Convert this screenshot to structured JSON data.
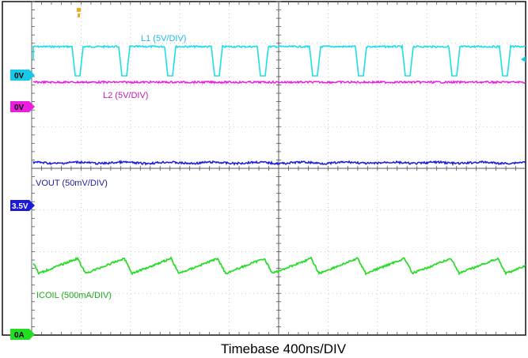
{
  "chart_data": {
    "type": "line",
    "timebase": "Timebase 400ns/DIV",
    "series": [
      {
        "name": "L1 (5V/DIV)",
        "color": "#1fdde6",
        "ref_label": "0V",
        "ref_color": "#19c8e6",
        "waveform": "switching square wave, high plateau with periodic negative notches (11 pulses across screen)"
      },
      {
        "name": "L2 (5V/DIV)",
        "color": "#ea1ee0",
        "ref_label": "0V",
        "ref_color": "#ea1ee0",
        "waveform": "flat line slightly above 0V with noise"
      },
      {
        "name": "VOUT (50mV/DIV)",
        "color": "#1a1ad8",
        "ref_label": "3.5V",
        "ref_color": "#1a1ad8",
        "waveform": "flat line with small ripple"
      },
      {
        "name": "ICOIL (500mA/DIV)",
        "color": "#22dd22",
        "ref_label": "0A",
        "ref_color": "#22dd22",
        "waveform": "sawtooth: slow rise, fast fall, 11 cycles"
      }
    ],
    "marker": {
      "color": "#f5a623"
    }
  }
}
